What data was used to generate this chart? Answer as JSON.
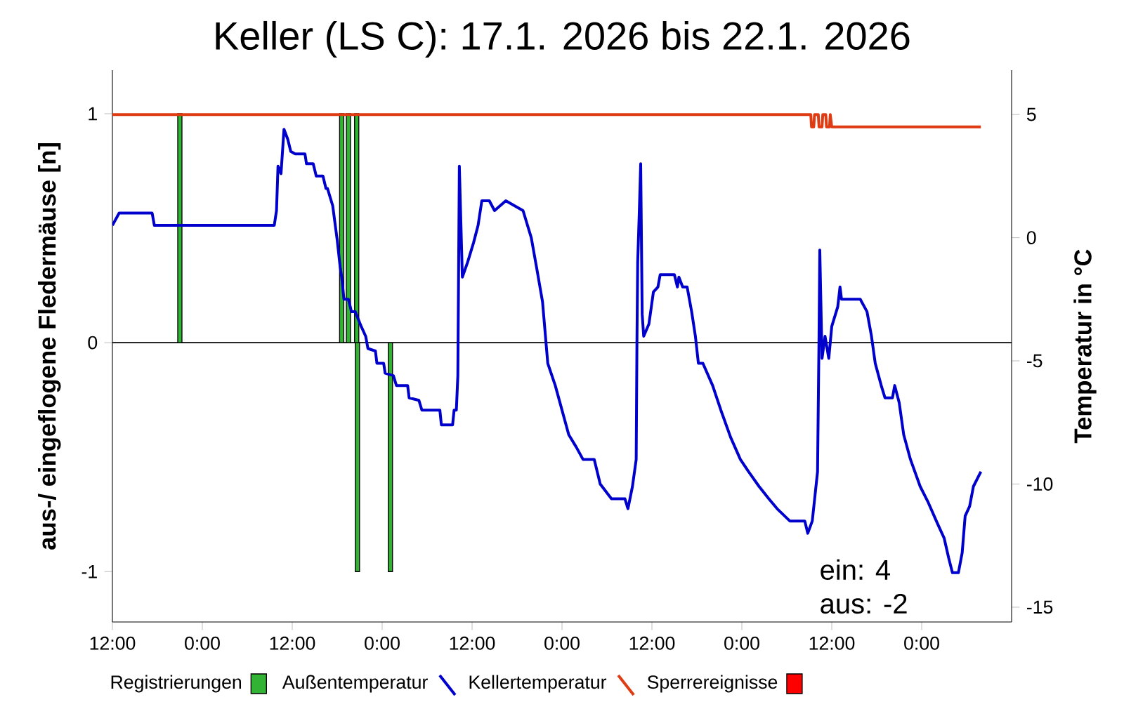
{
  "chart_data": {
    "type": "bar",
    "title": "Keller (LS C): 17.1. 2026 bis 22.1. 2026",
    "ylabel": "aus-/ eingeflogene Fledermäuse [n]",
    "y2label": "Temperatur in °C",
    "xlim": [
      "2026-01-17T12:00",
      "2026-01-22T12:00"
    ],
    "xticks": [
      {
        "value": "2026-01-17T12:00",
        "label": "12:00"
      },
      {
        "value": "2026-01-18T00:00",
        "label": "0:00"
      },
      {
        "value": "2026-01-18T12:00",
        "label": "12:00"
      },
      {
        "value": "2026-01-19T00:00",
        "label": "0:00"
      },
      {
        "value": "2026-01-19T12:00",
        "label": "12:00"
      },
      {
        "value": "2026-01-20T00:00",
        "label": "0:00"
      },
      {
        "value": "2026-01-20T12:00",
        "label": "12:00"
      },
      {
        "value": "2026-01-21T00:00",
        "label": "0:00"
      },
      {
        "value": "2026-01-21T12:00",
        "label": "12:00"
      },
      {
        "value": "2026-01-22T00:00",
        "label": "0:00"
      }
    ],
    "ylim": [
      -1.22,
      1.19
    ],
    "yticks": [
      -1,
      0,
      1
    ],
    "y2lim": [
      -15.6,
      6.8
    ],
    "y2ticks": [
      -15,
      -10,
      -5,
      0,
      5
    ],
    "legend": "bottom",
    "ref_lines": [
      {
        "axis": "y",
        "value": 0,
        "color": "#000000"
      }
    ],
    "annotations": [
      "ein: 4",
      "aus: -2"
    ],
    "series": [
      {
        "name": "Registrierungen",
        "axis": "y",
        "color": "#33b333",
        "x": [
          "2026-01-17T21:00",
          "2026-01-18T18:36",
          "2026-01-18T19:30",
          "2026-01-18T20:36",
          "2026-01-18T20:42",
          "2026-01-19T01:06"
        ],
        "values": [
          1,
          1,
          1,
          1,
          -1,
          -1
        ]
      },
      {
        "name": "Außentemperatur",
        "type": "line",
        "axis": "y2",
        "color": "#0000cc",
        "x": [
          "2026-01-17T12:00",
          "2026-01-17T12:54",
          "2026-01-17T17:18",
          "2026-01-17T17:36",
          "2026-01-18T09:36",
          "2026-01-18T09:54",
          "2026-01-18T10:06",
          "2026-01-18T10:30",
          "2026-01-18T10:54",
          "2026-01-18T11:24",
          "2026-01-18T11:48",
          "2026-01-18T12:24",
          "2026-01-18T13:42",
          "2026-01-18T13:54",
          "2026-01-18T14:48",
          "2026-01-18T15:12",
          "2026-01-18T16:06",
          "2026-01-18T16:30",
          "2026-01-18T16:42",
          "2026-01-18T17:24",
          "2026-01-18T18:00",
          "2026-01-18T18:24",
          "2026-01-18T18:36",
          "2026-01-18T18:54",
          "2026-01-18T19:30",
          "2026-01-18T19:54",
          "2026-01-18T20:24",
          "2026-01-18T21:12",
          "2026-01-18T21:48",
          "2026-01-18T22:06",
          "2026-01-18T23:06",
          "2026-01-18T23:18",
          "2026-01-19T00:12",
          "2026-01-19T00:24",
          "2026-01-19T01:30",
          "2026-01-19T01:54",
          "2026-01-19T03:24",
          "2026-01-19T03:36",
          "2026-01-19T04:54",
          "2026-01-19T05:18",
          "2026-01-19T07:42",
          "2026-01-19T07:54",
          "2026-01-19T09:24",
          "2026-01-19T09:36",
          "2026-01-19T09:54",
          "2026-01-19T10:06",
          "2026-01-19T10:18",
          "2026-01-19T10:42",
          "2026-01-19T11:24",
          "2026-01-19T12:12",
          "2026-01-19T12:48",
          "2026-01-19T13:18",
          "2026-01-19T14:18",
          "2026-01-19T15:00",
          "2026-01-19T16:30",
          "2026-01-19T18:48",
          "2026-01-19T19:54",
          "2026-01-19T20:36",
          "2026-01-19T21:24",
          "2026-01-19T22:06",
          "2026-01-19T23:06",
          "2026-01-20T00:00",
          "2026-01-20T00:54",
          "2026-01-20T01:54",
          "2026-01-20T02:48",
          "2026-01-20T04:18",
          "2026-01-20T05:06",
          "2026-01-20T06:36",
          "2026-01-20T08:24",
          "2026-01-20T08:48",
          "2026-01-20T09:24",
          "2026-01-20T09:54",
          "2026-01-20T10:00",
          "2026-01-20T10:06",
          "2026-01-20T10:18",
          "2026-01-20T10:30",
          "2026-01-20T10:42",
          "2026-01-20T10:54",
          "2026-01-20T11:36",
          "2026-01-20T12:12",
          "2026-01-20T12:48",
          "2026-01-20T13:06",
          "2026-01-20T15:00",
          "2026-01-20T15:24",
          "2026-01-20T15:36",
          "2026-01-20T16:06",
          "2026-01-20T16:42",
          "2026-01-20T17:18",
          "2026-01-20T17:48",
          "2026-01-20T18:12",
          "2026-01-20T18:48",
          "2026-01-20T20:06",
          "2026-01-20T21:12",
          "2026-01-20T22:30",
          "2026-01-20T23:48",
          "2026-01-21T00:54",
          "2026-01-21T02:18",
          "2026-01-21T03:36",
          "2026-01-21T04:42",
          "2026-01-21T06:24",
          "2026-01-21T08:24",
          "2026-01-21T08:48",
          "2026-01-21T09:24",
          "2026-01-21T10:06",
          "2026-01-21T10:18",
          "2026-01-21T10:24",
          "2026-01-21T10:42",
          "2026-01-21T11:06",
          "2026-01-21T11:36",
          "2026-01-21T12:00",
          "2026-01-21T12:48",
          "2026-01-21T13:06",
          "2026-01-21T13:18",
          "2026-01-21T15:48",
          "2026-01-21T16:42",
          "2026-01-21T17:18",
          "2026-01-21T17:48",
          "2026-01-21T18:36",
          "2026-01-21T19:06",
          "2026-01-21T20:06",
          "2026-01-21T20:24",
          "2026-01-21T21:00",
          "2026-01-21T21:36",
          "2026-01-21T22:30",
          "2026-01-21T23:48",
          "2026-01-22T00:48",
          "2026-01-22T02:06",
          "2026-01-22T03:00",
          "2026-01-22T03:36",
          "2026-01-22T04:06",
          "2026-01-22T04:54",
          "2026-01-22T05:24",
          "2026-01-22T05:48",
          "2026-01-22T06:24",
          "2026-01-22T06:54",
          "2026-01-22T07:54"
        ],
        "values": [
          0.5,
          1.0,
          1.0,
          0.5,
          0.5,
          1.1,
          2.9,
          2.6,
          4.4,
          4.0,
          3.5,
          3.4,
          3.4,
          3.0,
          3.0,
          2.5,
          2.5,
          2.0,
          2.0,
          1.3,
          -0.1,
          -1.2,
          -1.6,
          -2.5,
          -2.5,
          -3.0,
          -3.0,
          -3.6,
          -4.0,
          -4.5,
          -4.6,
          -5.1,
          -5.1,
          -5.5,
          -5.6,
          -6.0,
          -6.0,
          -6.5,
          -6.6,
          -7.0,
          -7.0,
          -7.6,
          -7.6,
          -7.0,
          -7.0,
          -5.6,
          2.9,
          -1.6,
          -1.0,
          -0.2,
          0.5,
          1.5,
          1.5,
          1.1,
          1.5,
          1.1,
          0.0,
          -1.2,
          -2.6,
          -5.1,
          -6.0,
          -7.0,
          -8.0,
          -8.5,
          -9.0,
          -9.0,
          -10.0,
          -10.6,
          -10.6,
          -11.0,
          -10.1,
          -9.0,
          -4.3,
          -1.0,
          0.9,
          3.0,
          -3.1,
          -4.0,
          -3.5,
          -2.2,
          -2.0,
          -1.5,
          -1.5,
          -2.0,
          -1.6,
          -2.0,
          -2.0,
          -3.0,
          -4.0,
          -5.1,
          -5.1,
          -6.0,
          -7.0,
          -8.1,
          -9.0,
          -9.5,
          -10.1,
          -10.6,
          -11.0,
          -11.5,
          -11.5,
          -12.0,
          -11.5,
          -9.5,
          -4.0,
          -0.5,
          -4.9,
          -4.0,
          -4.9,
          -3.6,
          -2.8,
          -2.0,
          -2.5,
          -2.5,
          -3.0,
          -4.0,
          -5.1,
          -6.0,
          -6.5,
          -6.5,
          -6.0,
          -6.7,
          -8.0,
          -9.0,
          -10.1,
          -10.7,
          -11.6,
          -12.2,
          -13.0,
          -13.6,
          -13.6,
          -12.8,
          -11.3,
          -10.9,
          -10.1,
          -9.5
        ]
      },
      {
        "name": "Kellertemperatur",
        "type": "line",
        "axis": "y2",
        "color": "#e03c14",
        "x": [
          "2026-01-17T12:00",
          "2026-01-21T09:12",
          "2026-01-21T09:18",
          "2026-01-21T09:36",
          "2026-01-21T09:42",
          "2026-01-21T10:12",
          "2026-01-21T10:18",
          "2026-01-21T10:42",
          "2026-01-21T10:48",
          "2026-01-21T11:12",
          "2026-01-21T11:18",
          "2026-01-21T11:42",
          "2026-01-21T11:48",
          "2026-01-21T12:00",
          "2026-01-22T07:54"
        ],
        "values": [
          5.0,
          5.0,
          4.5,
          4.5,
          5.0,
          5.0,
          4.5,
          4.5,
          5.0,
          5.0,
          4.5,
          4.5,
          5.0,
          4.5,
          4.5
        ]
      },
      {
        "name": "Sperrereignisse",
        "axis": "y",
        "color": "#ff0000"
      }
    ]
  }
}
